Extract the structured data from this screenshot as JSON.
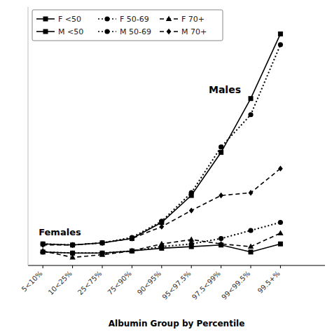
{
  "chart_data": {
    "type": "line",
    "x_label": "Albumin Group by Percentile",
    "categories": [
      "5<10%",
      "10<25%",
      "25<75%",
      "75<90%",
      "90<95%",
      "95<97.5%",
      "97.5<99%",
      "99<99.5%",
      "99.5+%"
    ],
    "series": [
      {
        "name": "F <50",
        "values": [
          0.95,
          0.93,
          0.93,
          0.97,
          1.02,
          1.05,
          1.08,
          0.95,
          1.1
        ],
        "marker": "square",
        "line_style": "solid"
      },
      {
        "name": "F 50-69",
        "values": [
          0.95,
          0.93,
          0.93,
          0.97,
          1.05,
          1.1,
          1.2,
          1.35,
          1.5
        ],
        "marker": "circle",
        "line_style": "dotted"
      },
      {
        "name": "F 70+",
        "values": [
          0.97,
          0.85,
          0.9,
          0.97,
          1.1,
          1.18,
          1.1,
          1.05,
          1.3
        ],
        "marker": "triangle",
        "line_style": "dashed"
      },
      {
        "name": "M <50",
        "values": [
          1.1,
          1.08,
          1.12,
          1.2,
          1.5,
          2.0,
          2.8,
          3.8,
          5.0
        ],
        "marker": "square",
        "line_style": "solid"
      },
      {
        "name": "M 50-69",
        "values": [
          1.1,
          1.08,
          1.12,
          1.22,
          1.52,
          2.05,
          2.9,
          3.5,
          4.8
        ],
        "marker": "circle",
        "line_style": "dotted"
      },
      {
        "name": "M 70+",
        "values": [
          1.08,
          1.08,
          1.12,
          1.2,
          1.42,
          1.72,
          2.0,
          2.05,
          2.5
        ],
        "marker": "diamond",
        "line_style": "dashed"
      }
    ],
    "annotations": [
      "Males",
      "Females"
    ],
    "color": "#000000",
    "ylim": [
      0.7,
      5.5
    ],
    "grid": false,
    "tick_labels": "x",
    "legend": "upper left"
  }
}
